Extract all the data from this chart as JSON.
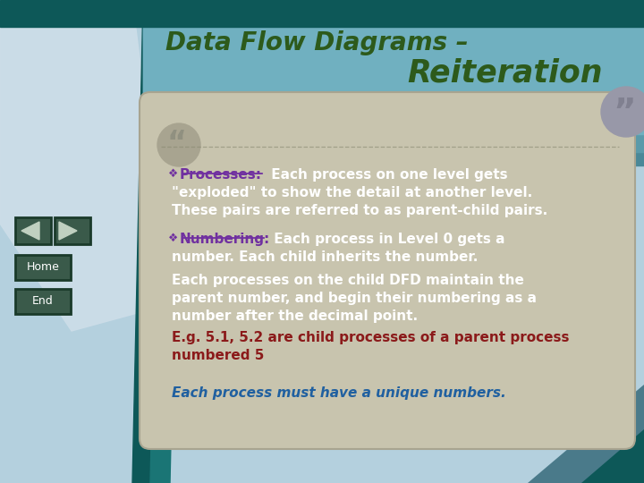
{
  "title_line1": "Data Flow Diagrams –",
  "title_line2": "Reiteration",
  "title_color": "#2d5a1b",
  "bg_light_blue": "#b4d0de",
  "teal_dark": "#0d5858",
  "teal_mid": "#1a7575",
  "scroll_bg": "#c8c4ae",
  "scroll_dark": "#b0ac98",
  "header_blue1": "#5090a0",
  "header_blue2": "#6aaabb",
  "header_blue3": "#7bbccc",
  "bullet_label_color": "#7030a0",
  "body_white": "#ffffff",
  "red_color": "#8b1a1a",
  "italic_color": "#2060a0",
  "nav_bg": "#3a5a4a",
  "nav_border": "#1a3a2a",
  "paper_color": "#ccdde8",
  "bullet1_label": "Processes:",
  "bullet2_label": "Numbering:",
  "proc_text1": " Each process on one level gets",
  "proc_text2": "\"exploded\" to show the detail at another level.",
  "proc_text3": "These pairs are referred to as parent-child pairs.",
  "num_text1": " Each process in Level 0 gets a",
  "num_text2": "number. Each child inherits the number.",
  "para_text1": "Each processes on the child DFD maintain the",
  "para_text2": "parent number, and begin their numbering as a",
  "para_text3": "number after the decimal point.",
  "red_text1": "E.g. 5.1, 5.2 are child processes of a parent process",
  "red_text2": "numbered 5",
  "italic_text": "Each process must have a unique numbers."
}
